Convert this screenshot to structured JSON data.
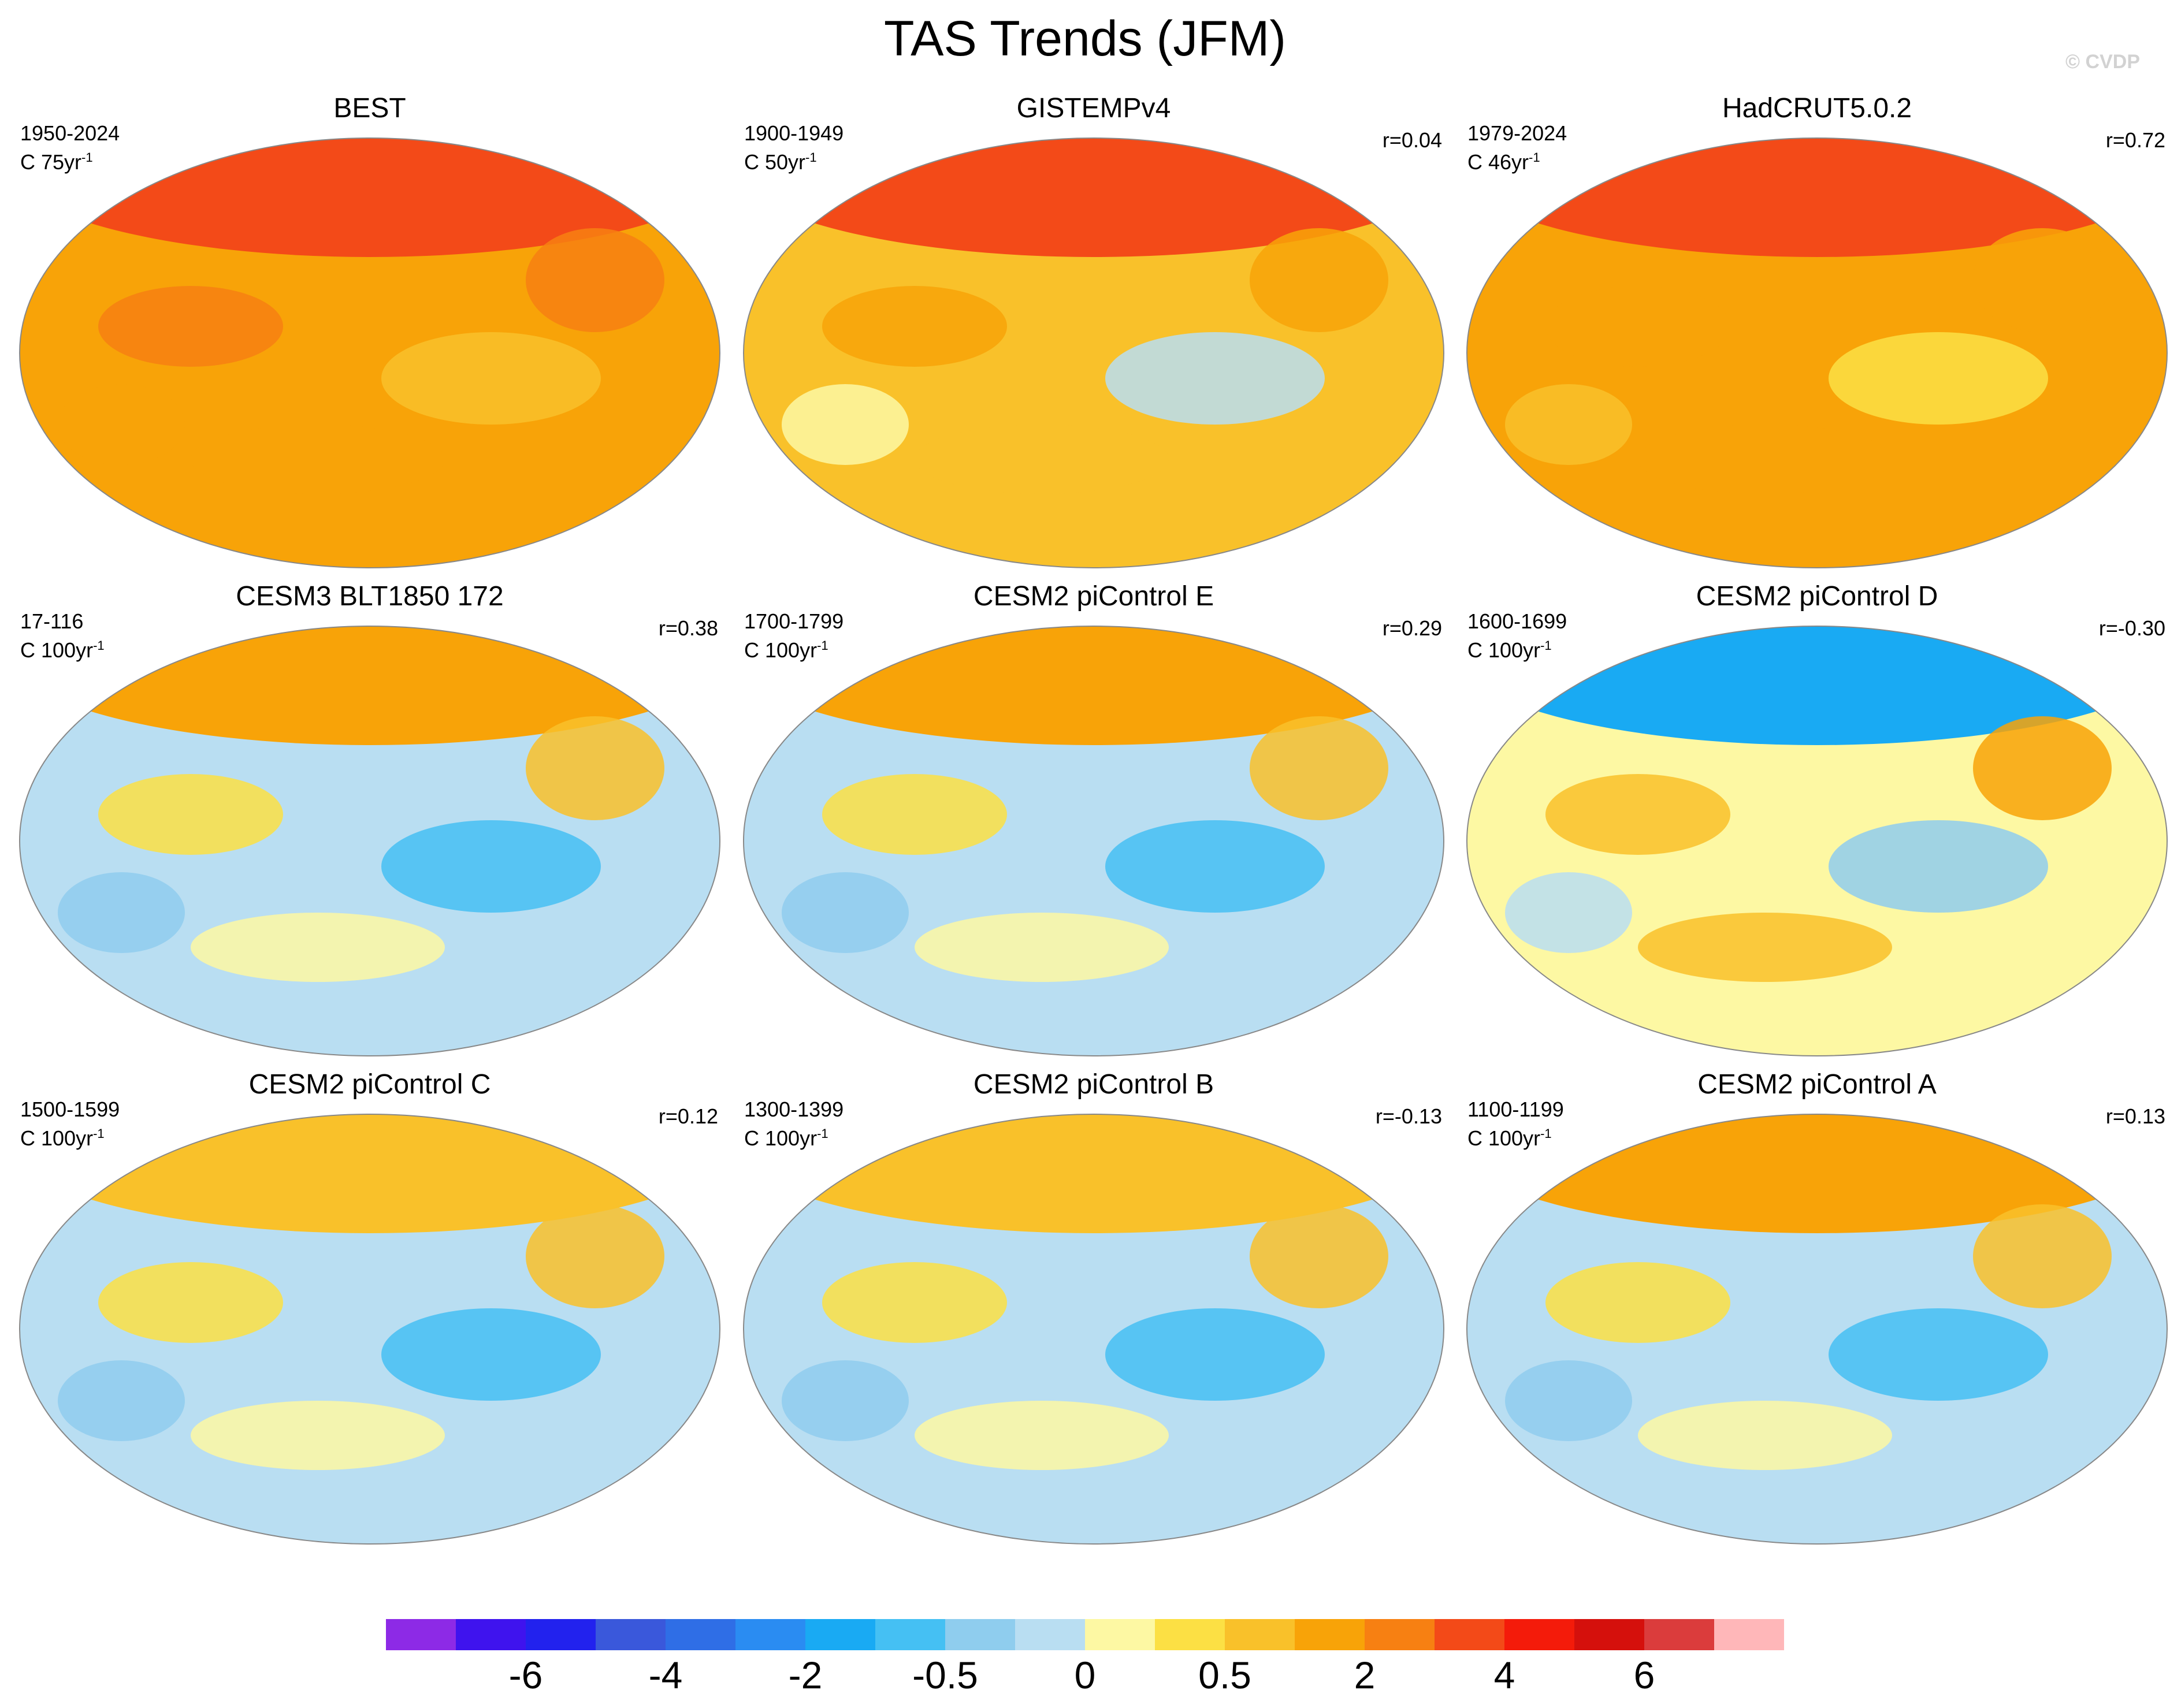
{
  "title": "TAS Trends (JFM)",
  "copyright": "© CVDP",
  "chart_data": {
    "type": "heatmap",
    "title": "TAS Trends (JFM)",
    "projection": "Robinson global maps",
    "panels": [
      {
        "title": "BEST",
        "period": "1950-2024",
        "units": "C 75yr",
        "units_exp": "-1",
        "r": "",
        "dominant_trend": 1.5,
        "arctic_trend": 3.5
      },
      {
        "title": "GISTEMPv4",
        "period": "1900-1949",
        "units": "C 50yr",
        "units_exp": "-1",
        "r": "r=0.04",
        "dominant_trend": 0.5,
        "arctic_trend": 3.0
      },
      {
        "title": "HadCRUT5.0.2",
        "period": "1979-2024",
        "units": "C 46yr",
        "units_exp": "-1",
        "r": "r=0.72",
        "dominant_trend": 1.0,
        "arctic_trend": 3.5
      },
      {
        "title": "CESM3 BLT1850 172",
        "period": "17-116",
        "units": "C 100yr",
        "units_exp": "-1",
        "r": "r=0.38",
        "dominant_trend": -0.2,
        "arctic_trend": 1.5
      },
      {
        "title": "CESM2 piControl E",
        "period": "1700-1799",
        "units": "C 100yr",
        "units_exp": "-1",
        "r": "r=0.29",
        "dominant_trend": -0.2,
        "arctic_trend": 1.5
      },
      {
        "title": "CESM2 piControl D",
        "period": "1600-1699",
        "units": "C 100yr",
        "units_exp": "-1",
        "r": "r=-0.30",
        "dominant_trend": 0.2,
        "arctic_trend": -1.5
      },
      {
        "title": "CESM2 piControl C",
        "period": "1500-1599",
        "units": "C 100yr",
        "units_exp": "-1",
        "r": "r=0.12",
        "dominant_trend": -0.2,
        "arctic_trend": 0.8
      },
      {
        "title": "CESM2 piControl B",
        "period": "1300-1399",
        "units": "C 100yr",
        "units_exp": "-1",
        "r": "r=-0.13",
        "dominant_trend": -0.2,
        "arctic_trend": 0.8
      },
      {
        "title": "CESM2 piControl A",
        "period": "1100-1199",
        "units": "C 100yr",
        "units_exp": "-1",
        "r": "r=0.13",
        "dominant_trend": -0.2,
        "arctic_trend": 1.5
      }
    ],
    "colorbar": {
      "colors": [
        "#8d2ae6",
        "#3f13ee",
        "#2222ee",
        "#3a58db",
        "#2f6ee6",
        "#2a8cf2",
        "#19aaf3",
        "#45c0f3",
        "#8fcdee",
        "#b9def2",
        "#fdf8a3",
        "#fce044",
        "#f9c12a",
        "#f8a308",
        "#f78012",
        "#f34a18",
        "#f41b0a",
        "#d5100c",
        "#db3c3c",
        "#ffb7b9"
      ],
      "tick_labels": [
        "-6",
        "-4",
        "-2",
        "-0.5",
        "0",
        "0.5",
        "2",
        "4",
        "6"
      ],
      "tick_boundaries": [
        2,
        4,
        6,
        8,
        10,
        12,
        14,
        16,
        18
      ]
    }
  }
}
